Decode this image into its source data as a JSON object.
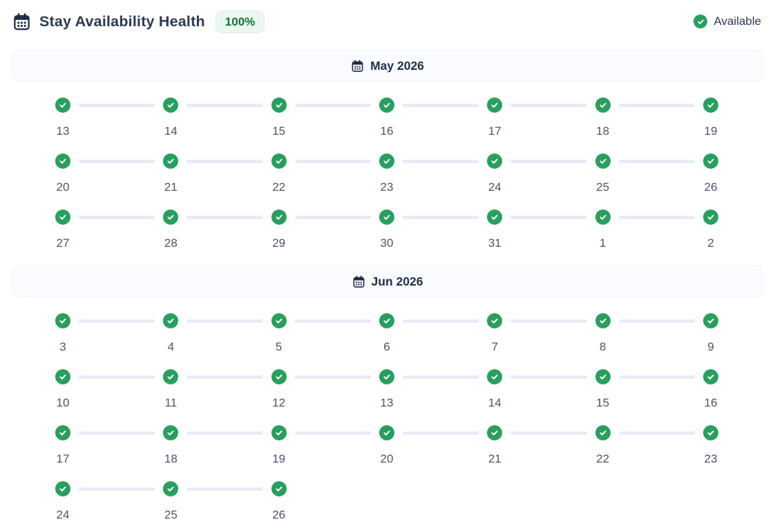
{
  "header": {
    "title": "Stay Availability Health",
    "health_badge": "100%",
    "legend": {
      "available_label": "Available"
    },
    "icons": {
      "title_icon": "calendar-icon",
      "legend_icon": "check-circle-icon"
    }
  },
  "colors": {
    "accent_green": "#27a05e",
    "badge_bg": "#e9f7ef",
    "badge_border": "#dcf0e3",
    "badge_text": "#15713c",
    "title_text": "#2c3a52",
    "month_text": "#20304b",
    "day_number_text": "#4a5568",
    "connector": "#e9ecf5",
    "section_bg": "#fafbfe",
    "section_border": "#f2f3f9"
  },
  "day_status": "available",
  "months": [
    {
      "label": "May 2026",
      "rows": [
        [
          "13",
          "14",
          "15",
          "16",
          "17",
          "18",
          "19"
        ],
        [
          "20",
          "21",
          "22",
          "23",
          "24",
          "25",
          "26"
        ],
        [
          "27",
          "28",
          "29",
          "30",
          "31",
          "1",
          "2"
        ]
      ]
    },
    {
      "label": "Jun 2026",
      "rows": [
        [
          "3",
          "4",
          "5",
          "6",
          "7",
          "8",
          "9"
        ],
        [
          "10",
          "11",
          "12",
          "13",
          "14",
          "15",
          "16"
        ],
        [
          "17",
          "18",
          "19",
          "20",
          "21",
          "22",
          "23"
        ],
        [
          "24",
          "25",
          "26"
        ]
      ]
    }
  ]
}
